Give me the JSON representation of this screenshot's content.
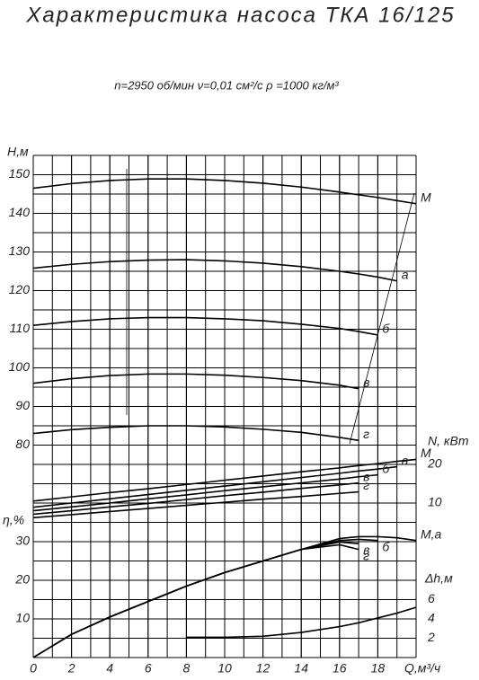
{
  "chart_data": [
    {
      "type": "line",
      "title": "Характеристика насоса ТКА 16/125",
      "subtitle": "n=2950 об/мин   ν=0,01 см²/с   ρ =1000 кг/м³",
      "xlabel": "Q,м³/ч",
      "ylabel": "H,м",
      "yaxis": "left",
      "color": "#000000",
      "xlim": [
        0,
        20
      ],
      "xticks": [
        0,
        2,
        4,
        6,
        8,
        10,
        12,
        14,
        16,
        18
      ],
      "ylim": [
        25,
        155
      ],
      "yticks": [
        80,
        90,
        100,
        110,
        120,
        130,
        140,
        150
      ],
      "grid": true,
      "x": [
        0,
        2,
        4,
        6,
        8,
        10,
        12,
        14,
        16,
        17,
        18,
        19,
        20
      ],
      "series": [
        {
          "name": "М",
          "values": [
            146.5,
            147.7,
            148.5,
            148.9,
            148.9,
            148.5,
            147.8,
            146.8,
            145.5,
            144.8,
            144.1,
            143.3,
            142.5
          ]
        },
        {
          "name": "а",
          "values": [
            125.8,
            126.8,
            127.5,
            127.9,
            128,
            127.7,
            127.1,
            126.2,
            125,
            124.3,
            123.5,
            122.5,
            null
          ]
        },
        {
          "name": "б",
          "values": [
            111,
            112,
            112.7,
            113,
            113,
            112.7,
            112.2,
            111.3,
            110.2,
            109.4,
            108.5,
            null,
            null
          ]
        },
        {
          "name": "в",
          "values": [
            96,
            97.2,
            98,
            98.4,
            98.4,
            98.1,
            97.5,
            96.7,
            95.5,
            94.6,
            null,
            null,
            null
          ]
        },
        {
          "name": "г",
          "values": [
            83,
            84,
            84.6,
            85,
            85,
            84.7,
            84.1,
            83.3,
            82,
            81.2,
            null,
            null,
            null
          ]
        }
      ]
    },
    {
      "type": "line",
      "ylabel": "N, кВт",
      "yaxis": "right",
      "color": "#000000",
      "ylim": [
        -30,
        100
      ],
      "yticks": [
        10,
        20
      ],
      "x": [
        0,
        2,
        4,
        6,
        8,
        10,
        12,
        14,
        16,
        17,
        18,
        19,
        20
      ],
      "series": [
        {
          "name": "М",
          "values": [
            10.5,
            11.6,
            12.7,
            13.7,
            14.8,
            15.9,
            17,
            18.1,
            19.1,
            19.7,
            20.2,
            20.8,
            21.3
          ]
        },
        {
          "name": "а",
          "values": [
            8.9,
            10,
            11.1,
            12.2,
            13.3,
            14.4,
            15.5,
            16.6,
            17.7,
            18.3,
            18.8,
            19.4,
            null
          ]
        },
        {
          "name": "б",
          "values": [
            8,
            9,
            10,
            11.1,
            12.1,
            13.2,
            14.2,
            15.2,
            16.2,
            16.8,
            17.3,
            null,
            null
          ]
        },
        {
          "name": "в",
          "values": [
            7.1,
            8,
            9,
            9.9,
            10.9,
            11.9,
            12.8,
            13.8,
            14.7,
            15.2,
            null,
            null,
            null
          ]
        },
        {
          "name": "г",
          "values": [
            6.2,
            7,
            7.8,
            8.6,
            9.4,
            10.2,
            11,
            11.7,
            12.5,
            12.9,
            null,
            null,
            null
          ]
        }
      ]
    },
    {
      "type": "line",
      "ylabel": "η,%",
      "yaxis": "left",
      "color": "#000000",
      "ylim": [
        0,
        130
      ],
      "yticks": [
        10,
        20,
        30
      ],
      "x": [
        0,
        2,
        4,
        6,
        8,
        10,
        12,
        14,
        16,
        17,
        18,
        19,
        20
      ],
      "series": [
        {
          "name": "М,а",
          "values": [
            0,
            6,
            10.5,
            14.5,
            18.5,
            22,
            25,
            28,
            30.8,
            31.3,
            31.3,
            31,
            30.3
          ]
        },
        {
          "name": "б",
          "values": [
            0,
            6,
            10.5,
            14.5,
            18.5,
            22,
            25,
            28,
            30.3,
            30.6,
            30.3,
            null,
            null
          ]
        },
        {
          "name": "в",
          "values": [
            0,
            6,
            10.5,
            14.5,
            18.5,
            22,
            25,
            28,
            29.9,
            29.5,
            null,
            null,
            null
          ]
        },
        {
          "name": "г",
          "values": [
            0,
            6,
            10.5,
            14.5,
            18.5,
            22,
            25,
            28,
            29.2,
            28,
            null,
            null,
            null
          ]
        }
      ]
    },
    {
      "type": "line",
      "ylabel": "Δh,м",
      "yaxis": "right",
      "color": "#000000",
      "ylim": [
        0,
        52
      ],
      "yticks": [
        2,
        4,
        6
      ],
      "x": [
        8,
        10,
        12,
        14,
        16,
        17,
        18,
        19,
        20
      ],
      "values": [
        2.1,
        2.1,
        2.2,
        2.6,
        3.2,
        3.6,
        4.1,
        4.6,
        5.2
      ]
    }
  ]
}
